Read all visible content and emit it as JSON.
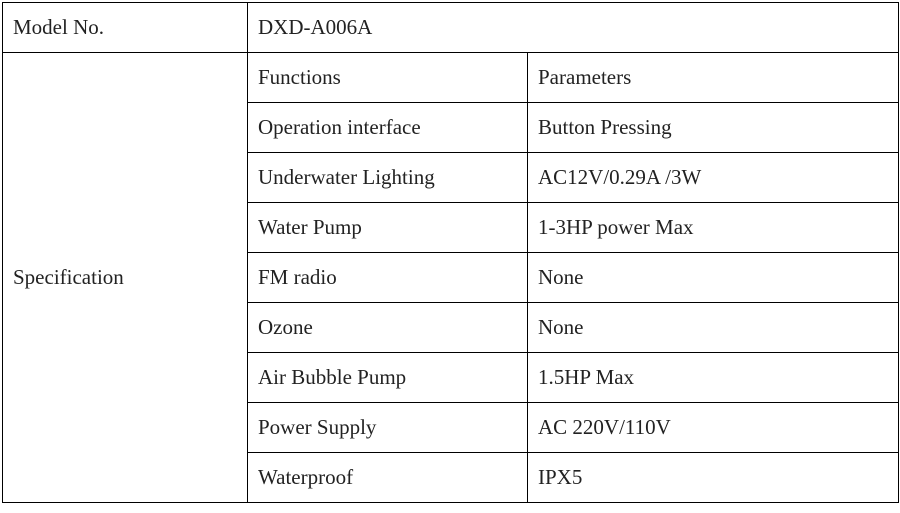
{
  "table": {
    "type": "table",
    "border_color": "#000000",
    "background_color": "#ffffff",
    "text_color": "#222222",
    "font_family": "Times New Roman",
    "base_fontsize": 21,
    "model_row": {
      "label": "Model No.",
      "value": "DXD-A006A",
      "value_fontsize": 26
    },
    "spec_row": {
      "label": "Specification",
      "header": {
        "functions": "Functions",
        "parameters": "Parameters"
      },
      "rows": [
        {
          "function": "Operation interface",
          "parameter": "Button Pressing"
        },
        {
          "function": "Underwater Lighting",
          "parameter": "AC12V/0.29A /3W"
        },
        {
          "function": "Water Pump",
          "parameter": "1-3HP power Max"
        },
        {
          "function": "FM radio",
          "parameter": "None"
        },
        {
          "function": "Ozone",
          "parameter": "None"
        },
        {
          "function": "Air Bubble Pump",
          "parameter": "1.5HP Max"
        },
        {
          "function": "Power Supply",
          "parameter": "AC 220V/110V"
        },
        {
          "function": "Waterproof",
          "parameter": "IPX5"
        }
      ]
    },
    "column_widths": {
      "label_col": 245,
      "function_col": 280,
      "parameter_col": 371
    },
    "ozone_parameter_fontsize": 26
  }
}
